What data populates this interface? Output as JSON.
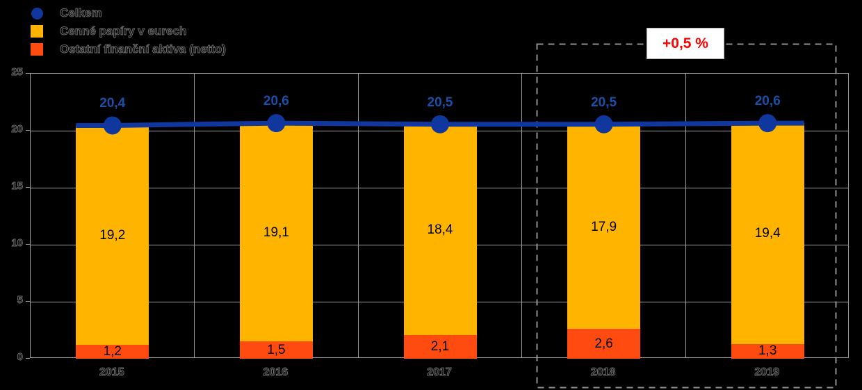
{
  "page": {
    "background": "#000000"
  },
  "chart_data": {
    "type": "bar",
    "subtype": "stacked-column-with-line-overlay",
    "title": "",
    "categories": [
      "2015",
      "2016",
      "2017",
      "2018",
      "2019"
    ],
    "series": [
      {
        "name": "Celkem",
        "role": "line",
        "marker": "circle",
        "color": "#10379E",
        "label_color": "#1C4FA8",
        "values": [
          20.4,
          20.6,
          20.5,
          20.5,
          20.6
        ],
        "value_labels": [
          "20,4",
          "20,6",
          "20,5",
          "20,5",
          "20,6"
        ]
      },
      {
        "name": "Cenné papíry v eurech",
        "role": "bar",
        "stack_position": "top",
        "color": "#FFB400",
        "values": [
          19.2,
          19.1,
          18.4,
          17.9,
          19.4
        ],
        "value_labels": [
          "19,2",
          "19,1",
          "18,4",
          "17,9",
          "19,4"
        ]
      },
      {
        "name": "Ostatní finanční aktiva (netto)",
        "role": "bar",
        "stack_position": "bottom",
        "color": "#FF4B0F",
        "values": [
          1.2,
          1.5,
          2.1,
          2.6,
          1.3
        ],
        "value_labels": [
          "1,2",
          "1,5",
          "2,1",
          "2,6",
          "1,3"
        ]
      }
    ],
    "ylim": [
      0,
      25
    ],
    "yticks": [
      0,
      5,
      10,
      15,
      20,
      25
    ],
    "xlabel": "",
    "ylabel": "",
    "grid": true,
    "legend_position": "top-left",
    "annotation": {
      "label": "+0,5 %",
      "text_color": "#FF0000",
      "box_bg": "#FFFFFF",
      "highlight_categories": [
        "2018",
        "2019"
      ]
    }
  },
  "colors": {
    "grid": "#9E9E9E",
    "dashed_box": "#8F8F8F",
    "ghost_text": "#6E6E6E",
    "bar_value_label": "#000000",
    "line": "#10379E",
    "line_value_label": "#1C4FA8",
    "annotation_text": "#FF0000",
    "annotation_bg": "#FFFFFF"
  }
}
